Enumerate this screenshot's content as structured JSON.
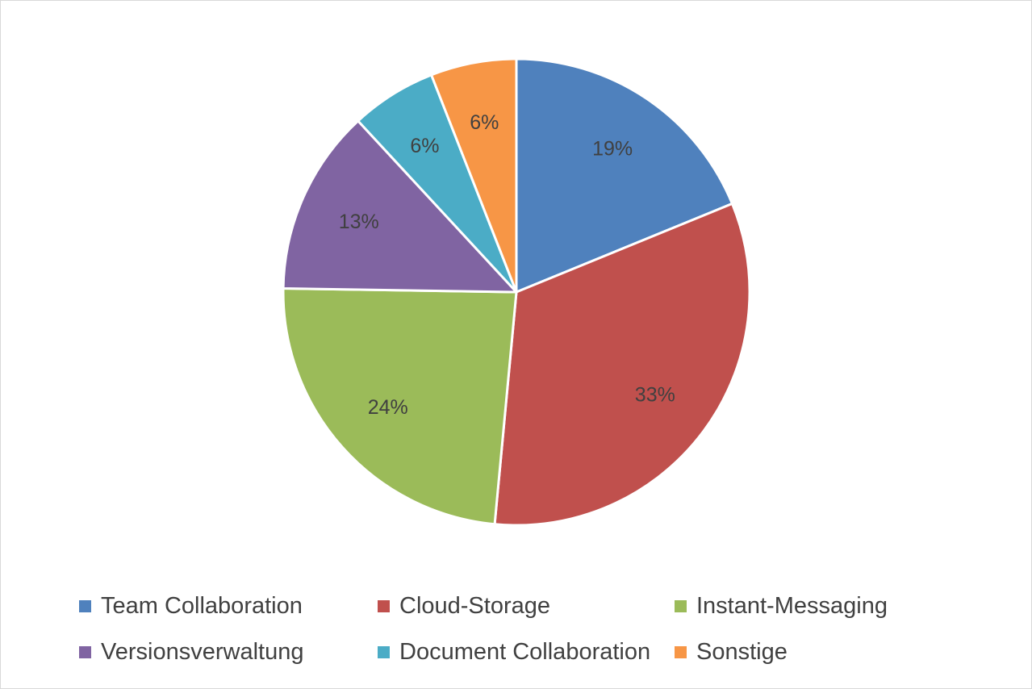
{
  "chart_data": {
    "type": "pie",
    "categories": [
      "Team Collaboration",
      "Cloud-Storage",
      "Instant-Messaging",
      "Versionsverwaltung",
      "Document Collaboration",
      "Sonstige"
    ],
    "values": [
      19,
      33,
      24,
      13,
      6,
      6
    ],
    "data_labels": [
      "19%",
      "33%",
      "24%",
      "13%",
      "6%",
      "6%"
    ],
    "colors": [
      "#4f81bd",
      "#c0504d",
      "#9bbb59",
      "#8064a2",
      "#4bacc6",
      "#f79646"
    ],
    "title": "",
    "legend_position": "bottom"
  }
}
